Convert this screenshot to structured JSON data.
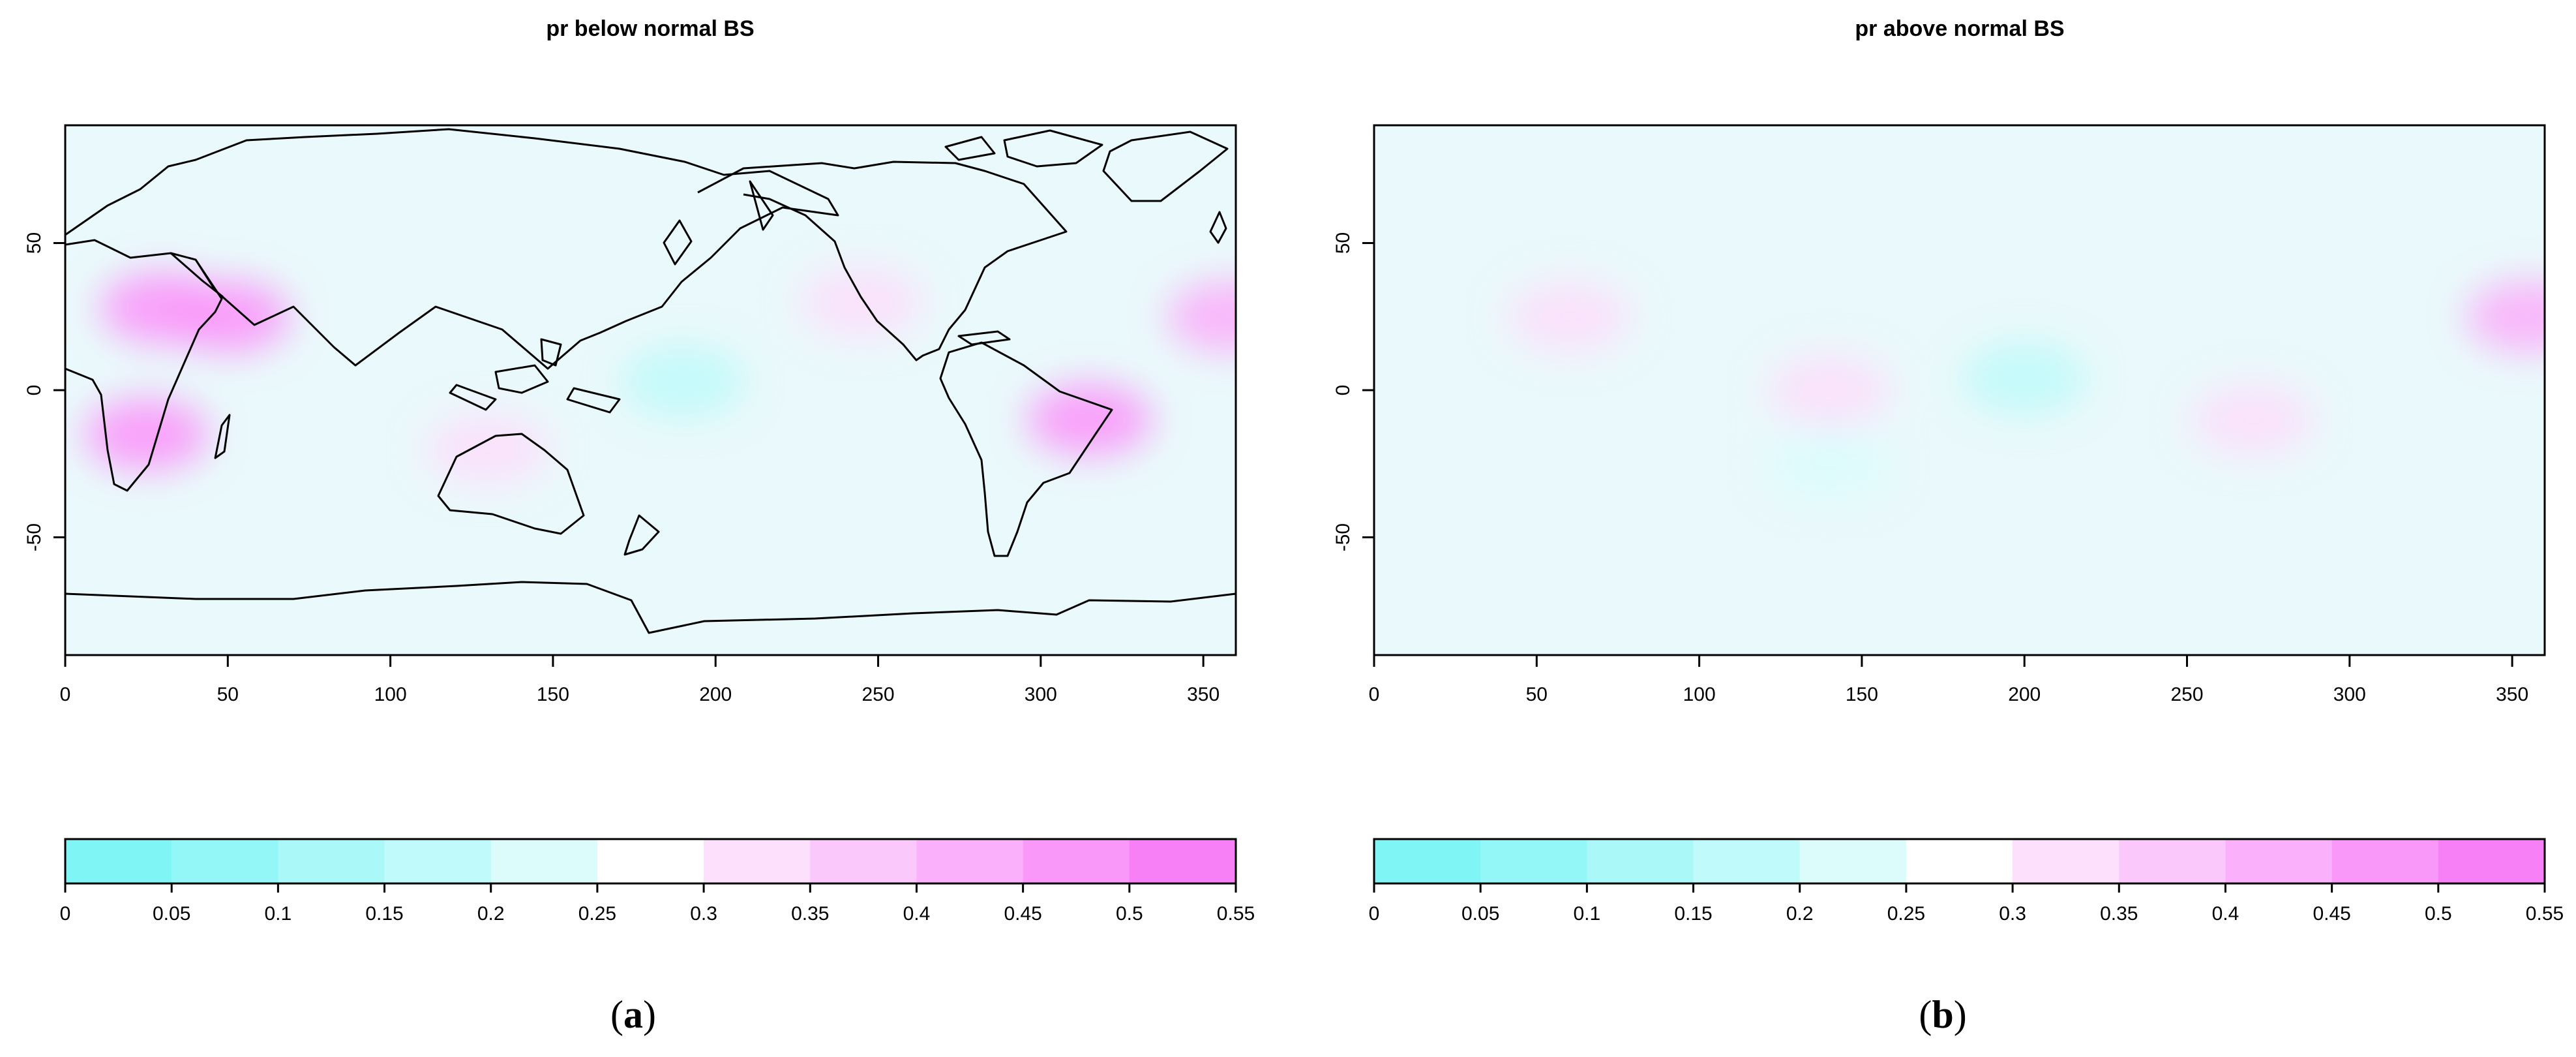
{
  "figure": {
    "panels": [
      {
        "id": "a",
        "title": "pr below normal BS",
        "sublabel": {
          "open": "(",
          "letter": "a",
          "close": ")"
        }
      },
      {
        "id": "b",
        "title": "pr above normal BS",
        "sublabel": {
          "open": "(",
          "letter": "b",
          "close": ")"
        }
      }
    ]
  },
  "chart_data": [
    {
      "type": "heatmap",
      "title": "pr below normal BS",
      "xlabel": "",
      "ylabel": "",
      "xlim": [
        0,
        360
      ],
      "ylim": [
        -90,
        90
      ],
      "x_ticks": [
        "0",
        "50",
        "100",
        "150",
        "200",
        "250",
        "300",
        "350"
      ],
      "y_ticks": [
        "-50",
        "0",
        "50"
      ],
      "colorbar": {
        "breaks": [
          "0",
          "0.05",
          "0.1",
          "0.15",
          "0.2",
          "0.25",
          "0.3",
          "0.35",
          "0.4",
          "0.45",
          "0.5",
          "0.55"
        ],
        "colors": [
          "#7ff5f5",
          "#94f7f7",
          "#aaf8f8",
          "#c0fafa",
          "#dcfcfc",
          "#ffffff",
          "#fce0fc",
          "#fbc8fb",
          "#fab0fa",
          "#f998f9",
          "#f780f7"
        ]
      },
      "field_background": "#eaf9fb",
      "hotspots": [
        {
          "lon": 30,
          "lat": 28,
          "value": 0.45
        },
        {
          "lon": 50,
          "lat": 25,
          "value": 0.45
        },
        {
          "lon": 25,
          "lat": -15,
          "value": 0.45
        },
        {
          "lon": 130,
          "lat": -20,
          "value": 0.35
        },
        {
          "lon": 315,
          "lat": -10,
          "value": 0.45
        },
        {
          "lon": 358,
          "lat": 25,
          "value": 0.4
        },
        {
          "lon": 245,
          "lat": 30,
          "value": 0.35
        },
        {
          "lon": 190,
          "lat": 3,
          "value": 0.15
        }
      ]
    },
    {
      "type": "heatmap",
      "title": "pr above normal BS",
      "xlabel": "",
      "ylabel": "",
      "xlim": [
        0,
        360
      ],
      "ylim": [
        -90,
        90
      ],
      "x_ticks": [
        "0",
        "50",
        "100",
        "150",
        "200",
        "250",
        "300",
        "350"
      ],
      "y_ticks": [
        "-50",
        "0",
        "50"
      ],
      "colorbar": {
        "breaks": [
          "0",
          "0.05",
          "0.1",
          "0.15",
          "0.2",
          "0.25",
          "0.3",
          "0.35",
          "0.4",
          "0.45",
          "0.5",
          "0.55"
        ],
        "colors": [
          "#7ff5f5",
          "#94f7f7",
          "#aaf8f8",
          "#c0fafa",
          "#dcfcfc",
          "#ffffff",
          "#fce0fc",
          "#fbc8fb",
          "#fab0fa",
          "#f998f9",
          "#f780f7"
        ]
      },
      "field_background": "#eaf9fb",
      "hotspots": [
        {
          "lon": 355,
          "lat": 25,
          "value": 0.4
        },
        {
          "lon": 60,
          "lat": 25,
          "value": 0.35
        },
        {
          "lon": 140,
          "lat": 0,
          "value": 0.35
        },
        {
          "lon": 270,
          "lat": -10,
          "value": 0.35
        },
        {
          "lon": 200,
          "lat": 4,
          "value": 0.15
        },
        {
          "lon": 140,
          "lat": -25,
          "value": 0.2
        }
      ]
    }
  ]
}
